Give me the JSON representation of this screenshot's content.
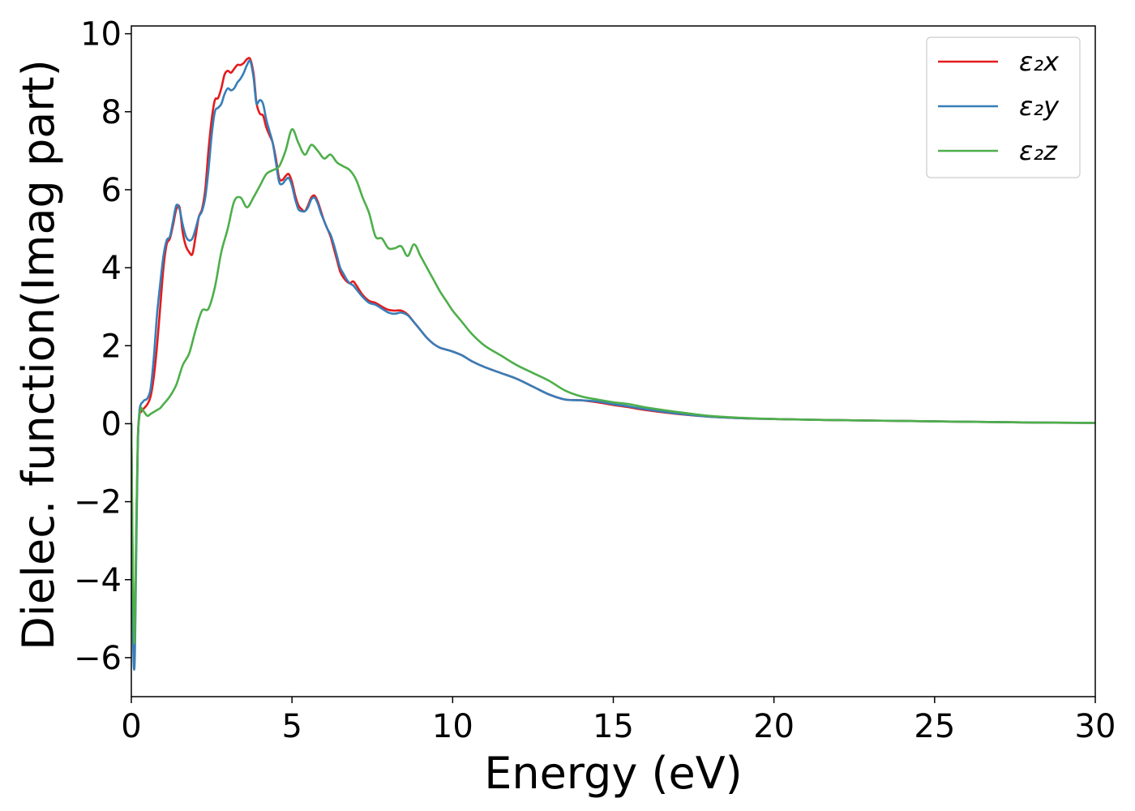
{
  "chart_data": {
    "type": "line",
    "title": "",
    "xlabel": "Energy (eV)",
    "ylabel": "Dielec. function(Imag part)",
    "xlim": [
      0,
      30
    ],
    "ylim": [
      -7,
      10.2
    ],
    "x_ticks": [
      0,
      5,
      10,
      15,
      20,
      25,
      30
    ],
    "y_ticks": [
      -6,
      -4,
      -2,
      0,
      2,
      4,
      6,
      8,
      10
    ],
    "x_tick_labels": [
      "0",
      "5",
      "10",
      "15",
      "20",
      "25",
      "30"
    ],
    "y_tick_labels": [
      "−6",
      "−4",
      "−2",
      "0",
      "2",
      "4",
      "6",
      "8",
      "10"
    ],
    "grid": false,
    "legend_position": "top-right",
    "series": [
      {
        "name": "ε₂x",
        "color": "#e41a1c",
        "x": [
          0,
          0.05,
          0.1,
          0.15,
          0.2,
          0.25,
          0.3,
          0.35,
          0.4,
          0.5,
          0.6,
          0.7,
          0.8,
          0.9,
          1.0,
          1.1,
          1.2,
          1.3,
          1.4,
          1.5,
          1.6,
          1.7,
          1.8,
          1.9,
          2.0,
          2.1,
          2.2,
          2.3,
          2.4,
          2.5,
          2.6,
          2.7,
          2.8,
          2.9,
          3.0,
          3.1,
          3.2,
          3.3,
          3.4,
          3.5,
          3.6,
          3.7,
          3.8,
          3.85,
          3.9,
          4.0,
          4.1,
          4.2,
          4.3,
          4.4,
          4.5,
          4.6,
          4.7,
          4.8,
          4.9,
          5.0,
          5.1,
          5.2,
          5.3,
          5.4,
          5.5,
          5.6,
          5.7,
          5.8,
          5.9,
          6.0,
          6.1,
          6.2,
          6.3,
          6.4,
          6.5,
          6.6,
          6.7,
          6.8,
          6.9,
          7.0,
          7.2,
          7.4,
          7.6,
          7.8,
          8.0,
          8.2,
          8.4,
          8.6,
          8.8,
          9.0,
          9.2,
          9.4,
          9.6,
          9.8,
          10.0,
          10.3,
          10.6,
          11.0,
          11.5,
          12.0,
          12.5,
          13.0,
          13.5,
          14.0,
          14.5,
          15.0,
          15.5,
          16.0,
          17.0,
          18.0,
          19.0,
          20.0,
          22.0,
          24.0,
          26.0,
          28.0,
          30.0
        ],
        "values": [
          0,
          -4.5,
          -5.8,
          -3.0,
          -0.5,
          0.2,
          0.3,
          0.35,
          0.4,
          0.5,
          0.7,
          1.2,
          2.0,
          3.0,
          4.0,
          4.6,
          4.75,
          5.1,
          5.5,
          5.55,
          4.9,
          4.55,
          4.4,
          4.35,
          4.8,
          5.3,
          5.5,
          6.0,
          7.0,
          7.8,
          8.3,
          8.35,
          8.6,
          8.95,
          9.05,
          9.0,
          9.1,
          9.2,
          9.2,
          9.25,
          9.35,
          9.35,
          9.0,
          8.6,
          8.2,
          7.95,
          7.9,
          7.6,
          7.4,
          7.2,
          6.8,
          6.3,
          6.25,
          6.35,
          6.4,
          6.2,
          5.85,
          5.6,
          5.5,
          5.45,
          5.6,
          5.8,
          5.85,
          5.7,
          5.45,
          5.2,
          5.0,
          4.8,
          4.5,
          4.2,
          3.9,
          3.75,
          3.65,
          3.6,
          3.65,
          3.55,
          3.3,
          3.15,
          3.1,
          3.0,
          2.92,
          2.9,
          2.9,
          2.8,
          2.6,
          2.4,
          2.2,
          2.05,
          1.95,
          1.9,
          1.85,
          1.75,
          1.6,
          1.45,
          1.3,
          1.15,
          0.95,
          0.75,
          0.62,
          0.6,
          0.55,
          0.48,
          0.42,
          0.35,
          0.25,
          0.18,
          0.14,
          0.12,
          0.09,
          0.07,
          0.05,
          0.03,
          0.02
        ]
      },
      {
        "name": "ε₂y",
        "color": "#377eb8",
        "x": [
          0,
          0.05,
          0.1,
          0.15,
          0.2,
          0.25,
          0.3,
          0.35,
          0.4,
          0.5,
          0.6,
          0.7,
          0.8,
          0.9,
          1.0,
          1.1,
          1.2,
          1.3,
          1.4,
          1.5,
          1.6,
          1.7,
          1.8,
          1.9,
          2.0,
          2.1,
          2.2,
          2.3,
          2.4,
          2.5,
          2.6,
          2.7,
          2.8,
          2.9,
          3.0,
          3.1,
          3.2,
          3.3,
          3.4,
          3.5,
          3.6,
          3.7,
          3.8,
          3.85,
          3.9,
          4.0,
          4.1,
          4.2,
          4.3,
          4.4,
          4.5,
          4.6,
          4.7,
          4.8,
          4.9,
          5.0,
          5.1,
          5.2,
          5.3,
          5.4,
          5.5,
          5.6,
          5.7,
          5.8,
          5.9,
          6.0,
          6.1,
          6.2,
          6.3,
          6.4,
          6.5,
          6.6,
          6.7,
          6.8,
          6.9,
          7.0,
          7.2,
          7.4,
          7.6,
          7.8,
          8.0,
          8.2,
          8.4,
          8.6,
          8.8,
          9.0,
          9.2,
          9.4,
          9.6,
          9.8,
          10.0,
          10.3,
          10.6,
          11.0,
          11.5,
          12.0,
          12.5,
          13.0,
          13.5,
          14.0,
          14.5,
          15.0,
          15.5,
          16.0,
          17.0,
          18.0,
          19.0,
          20.0,
          22.0,
          24.0,
          26.0,
          28.0,
          30.0
        ],
        "values": [
          0,
          -5.2,
          -6.2,
          -3.5,
          -0.6,
          0.3,
          0.5,
          0.55,
          0.6,
          0.65,
          0.9,
          1.7,
          2.8,
          3.6,
          4.3,
          4.7,
          4.8,
          5.2,
          5.6,
          5.5,
          5.1,
          4.8,
          4.7,
          4.75,
          5.0,
          5.3,
          5.45,
          5.8,
          6.5,
          7.4,
          8.0,
          8.1,
          8.2,
          8.45,
          8.6,
          8.55,
          8.6,
          8.75,
          8.85,
          9.0,
          9.2,
          9.3,
          8.9,
          8.5,
          8.2,
          8.3,
          8.2,
          7.8,
          7.5,
          7.2,
          6.7,
          6.2,
          6.15,
          6.25,
          6.3,
          6.1,
          5.75,
          5.5,
          5.45,
          5.45,
          5.55,
          5.75,
          5.8,
          5.65,
          5.4,
          5.2,
          5.0,
          4.85,
          4.6,
          4.3,
          4.0,
          3.85,
          3.7,
          3.6,
          3.55,
          3.45,
          3.25,
          3.1,
          3.05,
          2.95,
          2.85,
          2.82,
          2.85,
          2.78,
          2.6,
          2.4,
          2.2,
          2.05,
          1.95,
          1.9,
          1.85,
          1.75,
          1.6,
          1.45,
          1.3,
          1.15,
          0.95,
          0.75,
          0.62,
          0.6,
          0.57,
          0.5,
          0.44,
          0.37,
          0.26,
          0.18,
          0.14,
          0.12,
          0.09,
          0.07,
          0.05,
          0.03,
          0.02
        ]
      },
      {
        "name": "ε₂z",
        "color": "#4daf4a",
        "x": [
          0,
          0.05,
          0.1,
          0.15,
          0.2,
          0.25,
          0.3,
          0.35,
          0.4,
          0.5,
          0.6,
          0.7,
          0.8,
          0.9,
          1.0,
          1.2,
          1.4,
          1.6,
          1.8,
          2.0,
          2.2,
          2.4,
          2.6,
          2.8,
          3.0,
          3.2,
          3.4,
          3.6,
          3.8,
          4.0,
          4.2,
          4.4,
          4.6,
          4.8,
          5.0,
          5.2,
          5.4,
          5.6,
          5.8,
          6.0,
          6.2,
          6.4,
          6.6,
          6.8,
          7.0,
          7.2,
          7.4,
          7.6,
          7.8,
          8.0,
          8.2,
          8.4,
          8.6,
          8.8,
          9.0,
          9.2,
          9.4,
          9.6,
          9.8,
          10.0,
          10.3,
          10.6,
          11.0,
          11.5,
          12.0,
          12.5,
          13.0,
          13.5,
          14.0,
          14.5,
          15.0,
          15.5,
          16.0,
          17.0,
          18.0,
          19.0,
          20.0,
          22.0,
          24.0,
          26.0,
          28.0,
          30.0
        ],
        "values": [
          0,
          -4.0,
          -5.6,
          -2.8,
          -0.4,
          0.2,
          0.4,
          0.35,
          0.3,
          0.2,
          0.25,
          0.3,
          0.35,
          0.4,
          0.5,
          0.7,
          1.0,
          1.5,
          1.8,
          2.4,
          2.9,
          2.95,
          3.5,
          4.4,
          5.0,
          5.7,
          5.8,
          5.55,
          5.8,
          6.1,
          6.4,
          6.5,
          6.6,
          7.0,
          7.55,
          7.2,
          6.9,
          7.15,
          7.0,
          6.8,
          6.9,
          6.7,
          6.6,
          6.5,
          6.25,
          5.8,
          5.4,
          4.8,
          4.75,
          4.5,
          4.5,
          4.55,
          4.3,
          4.6,
          4.3,
          4.0,
          3.7,
          3.4,
          3.15,
          2.9,
          2.6,
          2.3,
          2.0,
          1.75,
          1.5,
          1.3,
          1.1,
          0.85,
          0.7,
          0.62,
          0.55,
          0.5,
          0.42,
          0.3,
          0.2,
          0.15,
          0.12,
          0.09,
          0.07,
          0.05,
          0.03,
          0.02
        ]
      }
    ]
  }
}
